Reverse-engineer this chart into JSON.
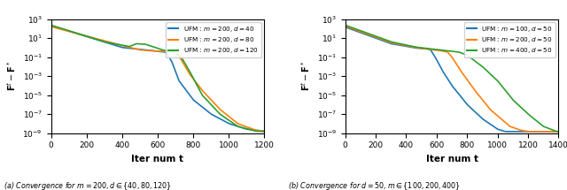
{
  "subplot1": {
    "legend_entries": [
      {
        "label": "UFM : $m = 200, d = 40$",
        "color": "#1f77b4"
      },
      {
        "label": "UFM : $m = 200, d = 80$",
        "color": "#ff7f0e"
      },
      {
        "label": "UFM : $m = 200, d = 120$",
        "color": "#2ca02c"
      }
    ],
    "xlabel": "Iter num t",
    "ylabel": "$\\mathbf{F}^t - \\mathbf{F}^*$",
    "xlim": [
      0,
      1200
    ],
    "ylim": [
      1e-09,
      1000.0
    ],
    "xticks": [
      0,
      200,
      400,
      600,
      800,
      1000,
      1200
    ],
    "caption": "(a) Convergence for $m = 200, d \\in \\{40, 80, 120\\}$",
    "curves": [
      {
        "color": "#1f77b4",
        "segments": [
          {
            "t": 0,
            "log_y": 2.3
          },
          {
            "t": 400,
            "log_y": 0.0
          },
          {
            "t": 560,
            "log_y": -0.3
          },
          {
            "t": 600,
            "log_y": -0.4
          },
          {
            "t": 650,
            "log_y": -0.5
          },
          {
            "t": 680,
            "log_y": -1.5
          },
          {
            "t": 720,
            "log_y": -3.5
          },
          {
            "t": 800,
            "log_y": -5.5
          },
          {
            "t": 900,
            "log_y": -7.0
          },
          {
            "t": 1000,
            "log_y": -8.0
          },
          {
            "t": 1100,
            "log_y": -8.6
          },
          {
            "t": 1200,
            "log_y": -8.8
          }
        ]
      },
      {
        "color": "#ff7f0e",
        "segments": [
          {
            "t": 0,
            "log_y": 2.2
          },
          {
            "t": 400,
            "log_y": 0.2
          },
          {
            "t": 500,
            "log_y": -0.25
          },
          {
            "t": 560,
            "log_y": -0.35
          },
          {
            "t": 620,
            "log_y": -0.4
          },
          {
            "t": 660,
            "log_y": -0.42
          },
          {
            "t": 700,
            "log_y": -0.5
          },
          {
            "t": 730,
            "log_y": -1.2
          },
          {
            "t": 780,
            "log_y": -2.8
          },
          {
            "t": 850,
            "log_y": -4.5
          },
          {
            "t": 950,
            "log_y": -6.5
          },
          {
            "t": 1050,
            "log_y": -8.0
          },
          {
            "t": 1150,
            "log_y": -8.7
          },
          {
            "t": 1200,
            "log_y": -8.8
          }
        ]
      },
      {
        "color": "#2ca02c",
        "segments": [
          {
            "t": 0,
            "log_y": 2.35
          },
          {
            "t": 300,
            "log_y": 0.6
          },
          {
            "t": 440,
            "log_y": 0.1
          },
          {
            "t": 480,
            "log_y": 0.4
          },
          {
            "t": 530,
            "log_y": 0.35
          },
          {
            "t": 580,
            "log_y": 0.05
          },
          {
            "t": 630,
            "log_y": -0.28
          },
          {
            "t": 660,
            "log_y": -0.38
          },
          {
            "t": 700,
            "log_y": -0.5
          },
          {
            "t": 730,
            "log_y": -0.9
          },
          {
            "t": 780,
            "log_y": -2.5
          },
          {
            "t": 850,
            "log_y": -5.0
          },
          {
            "t": 950,
            "log_y": -7.0
          },
          {
            "t": 1050,
            "log_y": -8.3
          },
          {
            "t": 1150,
            "log_y": -8.8
          },
          {
            "t": 1200,
            "log_y": -8.85
          }
        ]
      }
    ]
  },
  "subplot2": {
    "legend_entries": [
      {
        "label": "UFM : $m = 100, d = 50$",
        "color": "#1f77b4"
      },
      {
        "label": "UFM : $m = 200, d = 50$",
        "color": "#ff7f0e"
      },
      {
        "label": "UFM : $m = 400, d = 50$",
        "color": "#2ca02c"
      }
    ],
    "xlabel": "Iter num t",
    "ylabel": "$\\mathbf{F}^t - \\mathbf{F}^*$",
    "xlim": [
      0,
      1400
    ],
    "ylim": [
      1e-09,
      1000.0
    ],
    "xticks": [
      0,
      200,
      400,
      600,
      800,
      1000,
      1200,
      1400
    ],
    "caption": "(b) Convergence for $d = 50, m \\in \\{100, 200, 400\\}$",
    "curves": [
      {
        "color": "#1f77b4",
        "segments": [
          {
            "t": 0,
            "log_y": 2.15
          },
          {
            "t": 300,
            "log_y": 0.4
          },
          {
            "t": 460,
            "log_y": -0.05
          },
          {
            "t": 510,
            "log_y": -0.12
          },
          {
            "t": 540,
            "log_y": -0.15
          },
          {
            "t": 560,
            "log_y": -0.25
          },
          {
            "t": 590,
            "log_y": -1.0
          },
          {
            "t": 640,
            "log_y": -2.5
          },
          {
            "t": 700,
            "log_y": -4.0
          },
          {
            "t": 800,
            "log_y": -6.0
          },
          {
            "t": 900,
            "log_y": -7.5
          },
          {
            "t": 1000,
            "log_y": -8.6
          },
          {
            "t": 1050,
            "log_y": -8.85
          },
          {
            "t": 1400,
            "log_y": -8.85
          }
        ]
      },
      {
        "color": "#ff7f0e",
        "segments": [
          {
            "t": 0,
            "log_y": 2.25
          },
          {
            "t": 300,
            "log_y": 0.5
          },
          {
            "t": 460,
            "log_y": 0.0
          },
          {
            "t": 510,
            "log_y": -0.1
          },
          {
            "t": 545,
            "log_y": -0.18
          },
          {
            "t": 570,
            "log_y": -0.22
          },
          {
            "t": 610,
            "log_y": -0.3
          },
          {
            "t": 640,
            "log_y": -0.38
          },
          {
            "t": 670,
            "log_y": -0.45
          },
          {
            "t": 700,
            "log_y": -1.0
          },
          {
            "t": 760,
            "log_y": -2.5
          },
          {
            "t": 850,
            "log_y": -4.5
          },
          {
            "t": 950,
            "log_y": -6.5
          },
          {
            "t": 1080,
            "log_y": -8.3
          },
          {
            "t": 1150,
            "log_y": -8.7
          },
          {
            "t": 1200,
            "log_y": -8.85
          },
          {
            "t": 1400,
            "log_y": -8.85
          }
        ]
      },
      {
        "color": "#2ca02c",
        "segments": [
          {
            "t": 0,
            "log_y": 2.35
          },
          {
            "t": 300,
            "log_y": 0.6
          },
          {
            "t": 460,
            "log_y": 0.05
          },
          {
            "t": 510,
            "log_y": -0.05
          },
          {
            "t": 540,
            "log_y": -0.1
          },
          {
            "t": 580,
            "log_y": -0.18
          },
          {
            "t": 620,
            "log_y": -0.25
          },
          {
            "t": 660,
            "log_y": -0.32
          },
          {
            "t": 700,
            "log_y": -0.38
          },
          {
            "t": 750,
            "log_y": -0.5
          },
          {
            "t": 800,
            "log_y": -0.8
          },
          {
            "t": 900,
            "log_y": -2.0
          },
          {
            "t": 1000,
            "log_y": -3.5
          },
          {
            "t": 1100,
            "log_y": -5.5
          },
          {
            "t": 1200,
            "log_y": -7.0
          },
          {
            "t": 1300,
            "log_y": -8.3
          },
          {
            "t": 1380,
            "log_y": -8.8
          },
          {
            "t": 1400,
            "log_y": -8.85
          }
        ]
      }
    ]
  }
}
